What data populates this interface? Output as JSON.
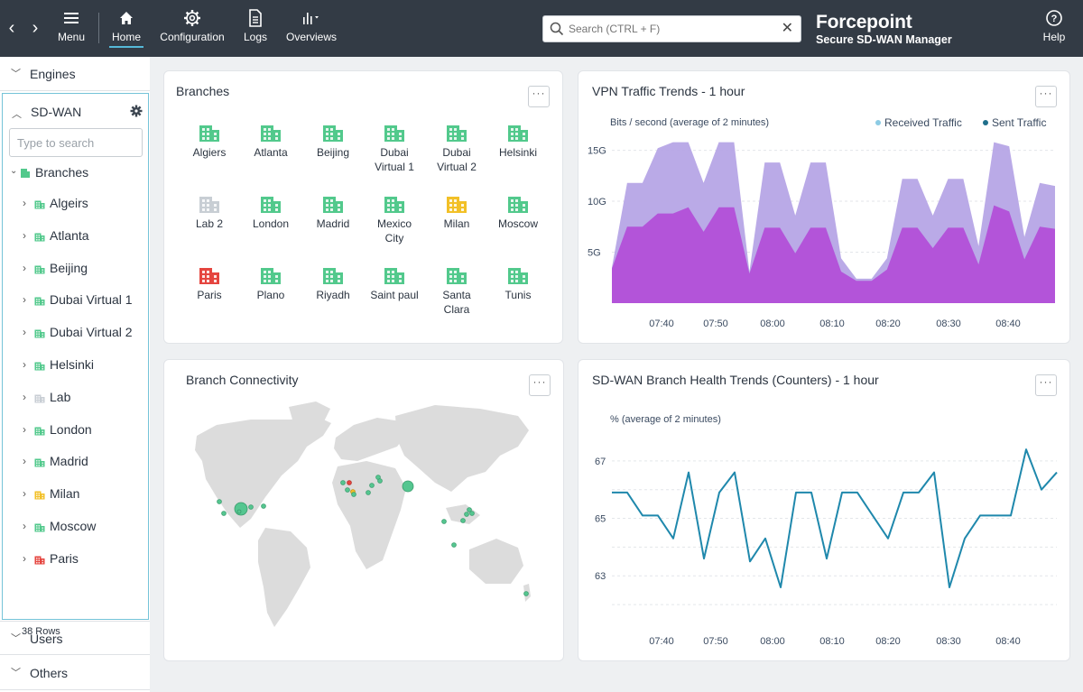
{
  "topbar": {
    "back_label": "‹",
    "forward_label": "›",
    "menu_label": "Menu",
    "nav": [
      "Home",
      "Configuration",
      "Logs",
      "Overviews"
    ],
    "search_placeholder": "Search (CTRL + F)",
    "brand_logo": "Forcepoint",
    "brand_sub": "Secure SD-WAN Manager",
    "help_label": "Help"
  },
  "sidebar": {
    "engines": "Engines",
    "sdwan": "SD-WAN",
    "tree_search_placeholder": "Type to search",
    "root": "Branches",
    "items": [
      {
        "label": "Algeirs",
        "status": "green"
      },
      {
        "label": "Atlanta",
        "status": "green"
      },
      {
        "label": "Beijing",
        "status": "green"
      },
      {
        "label": "Dubai Virtual 1",
        "status": "green"
      },
      {
        "label": "Dubai Virtual 2",
        "status": "green"
      },
      {
        "label": "Helsinki",
        "status": "green"
      },
      {
        "label": "Lab",
        "status": "gray"
      },
      {
        "label": "London",
        "status": "green"
      },
      {
        "label": "Madrid",
        "status": "green"
      },
      {
        "label": "Milan",
        "status": "yellow"
      },
      {
        "label": "Moscow",
        "status": "green"
      },
      {
        "label": "Paris",
        "status": "red"
      }
    ],
    "rows": "38 Rows",
    "users": "Users",
    "others": "Others"
  },
  "colors": {
    "green": "#52c98c",
    "gray": "#c8ced4",
    "yellow": "#f2c027",
    "red": "#e5453f",
    "received": "#b6a5e6",
    "sent": "#b24dd8",
    "health": "#1f88ac",
    "accent": "#55b9d8"
  },
  "branches_card": {
    "title": "Branches",
    "more": "···",
    "items": [
      {
        "label1": "Algiers",
        "label2": "",
        "status": "green"
      },
      {
        "label1": "Atlanta",
        "label2": "",
        "status": "green"
      },
      {
        "label1": "Beijing",
        "label2": "",
        "status": "green"
      },
      {
        "label1": "Dubai",
        "label2": "Virtual 1",
        "status": "green"
      },
      {
        "label1": "Dubai",
        "label2": "Virtual 2",
        "status": "green"
      },
      {
        "label1": "Helsinki",
        "label2": "",
        "status": "green"
      },
      {
        "label1": "Lab 2",
        "label2": "",
        "status": "gray"
      },
      {
        "label1": "London",
        "label2": "",
        "status": "green"
      },
      {
        "label1": "Madrid",
        "label2": "",
        "status": "green"
      },
      {
        "label1": "Mexico",
        "label2": "City",
        "status": "green"
      },
      {
        "label1": "Milan",
        "label2": "",
        "status": "yellow"
      },
      {
        "label1": "Moscow",
        "label2": "",
        "status": "green"
      },
      {
        "label1": "Paris",
        "label2": "",
        "status": "red"
      },
      {
        "label1": "Plano",
        "label2": "",
        "status": "green"
      },
      {
        "label1": "Riyadh",
        "label2": "",
        "status": "green"
      },
      {
        "label1": "Saint paul",
        "label2": "",
        "status": "green"
      },
      {
        "label1": "Santa",
        "label2": "Clara",
        "status": "green"
      },
      {
        "label1": "Tunis",
        "label2": "",
        "status": "green"
      }
    ]
  },
  "connectivity_card": {
    "title": "Branch Connectivity",
    "more": "···"
  },
  "chart_data": [
    {
      "type": "area",
      "title": "VPN Traffic Trends - 1 hour",
      "subtitle": "Bits / second (average of 2 minutes)",
      "more": "···",
      "legend": "top-right",
      "ylim": [
        0,
        17
      ],
      "yticks": [
        {
          "v": 5,
          "label": "5G"
        },
        {
          "v": 10,
          "label": "10G"
        },
        {
          "v": 15,
          "label": "15G"
        }
      ],
      "xticks": [
        "07:40",
        "07:50",
        "08:00",
        "08:10",
        "08:20",
        "08:30",
        "08:40"
      ],
      "x": [
        0,
        1,
        2,
        3,
        4,
        5,
        6,
        7,
        8,
        9,
        10,
        11,
        12,
        13,
        14,
        15,
        16,
        17,
        18,
        19,
        20,
        21,
        22,
        23,
        24,
        25,
        26,
        27,
        28,
        29
      ],
      "series": [
        {
          "name": "Received Traffic",
          "values": [
            3.5,
            11.8,
            11.8,
            15.2,
            15.8,
            15.8,
            11.8,
            15.8,
            15.8,
            3.1,
            13.8,
            13.8,
            8.6,
            13.8,
            13.8,
            4.4,
            2.4,
            2.4,
            4.4,
            12.2,
            12.2,
            8.6,
            12.2,
            12.2,
            5.6,
            15.8,
            15.4,
            6.5,
            11.8,
            11.5
          ]
        },
        {
          "name": "Sent Traffic",
          "values": [
            3.4,
            7.5,
            7.5,
            8.8,
            8.8,
            9.4,
            7.0,
            9.4,
            9.4,
            2.9,
            7.4,
            7.4,
            4.9,
            7.4,
            7.4,
            3.1,
            2.2,
            2.2,
            3.3,
            7.4,
            7.4,
            5.4,
            7.4,
            7.4,
            3.8,
            9.6,
            9.0,
            4.3,
            7.5,
            7.3
          ]
        }
      ]
    },
    {
      "type": "line",
      "title": "SD-WAN Branch Health Trends (Counters) - 1 hour",
      "subtitle": "% (average of 2 minutes)",
      "more": "···",
      "ylim": [
        61.5,
        68
      ],
      "yticks": [
        {
          "v": 63,
          "label": "63"
        },
        {
          "v": 65,
          "label": "65"
        },
        {
          "v": 67,
          "label": "67"
        }
      ],
      "xticks": [
        "07:40",
        "07:50",
        "08:00",
        "08:10",
        "08:20",
        "08:30",
        "08:40"
      ],
      "x": [
        0,
        1,
        2,
        3,
        4,
        5,
        6,
        7,
        8,
        9,
        10,
        11,
        12,
        13,
        14,
        15,
        16,
        17,
        18,
        19,
        20,
        21,
        22,
        23,
        24,
        25,
        26,
        27,
        28,
        29
      ],
      "series": [
        {
          "name": "Health",
          "values": [
            65.9,
            65.9,
            65.1,
            65.1,
            64.3,
            66.6,
            63.6,
            65.9,
            66.6,
            63.5,
            64.3,
            62.6,
            65.9,
            65.9,
            63.6,
            65.9,
            65.9,
            65.1,
            64.3,
            65.9,
            65.9,
            66.6,
            62.6,
            64.3,
            65.1,
            65.1,
            65.1,
            67.4,
            66.0,
            66.6
          ]
        }
      ]
    }
  ]
}
